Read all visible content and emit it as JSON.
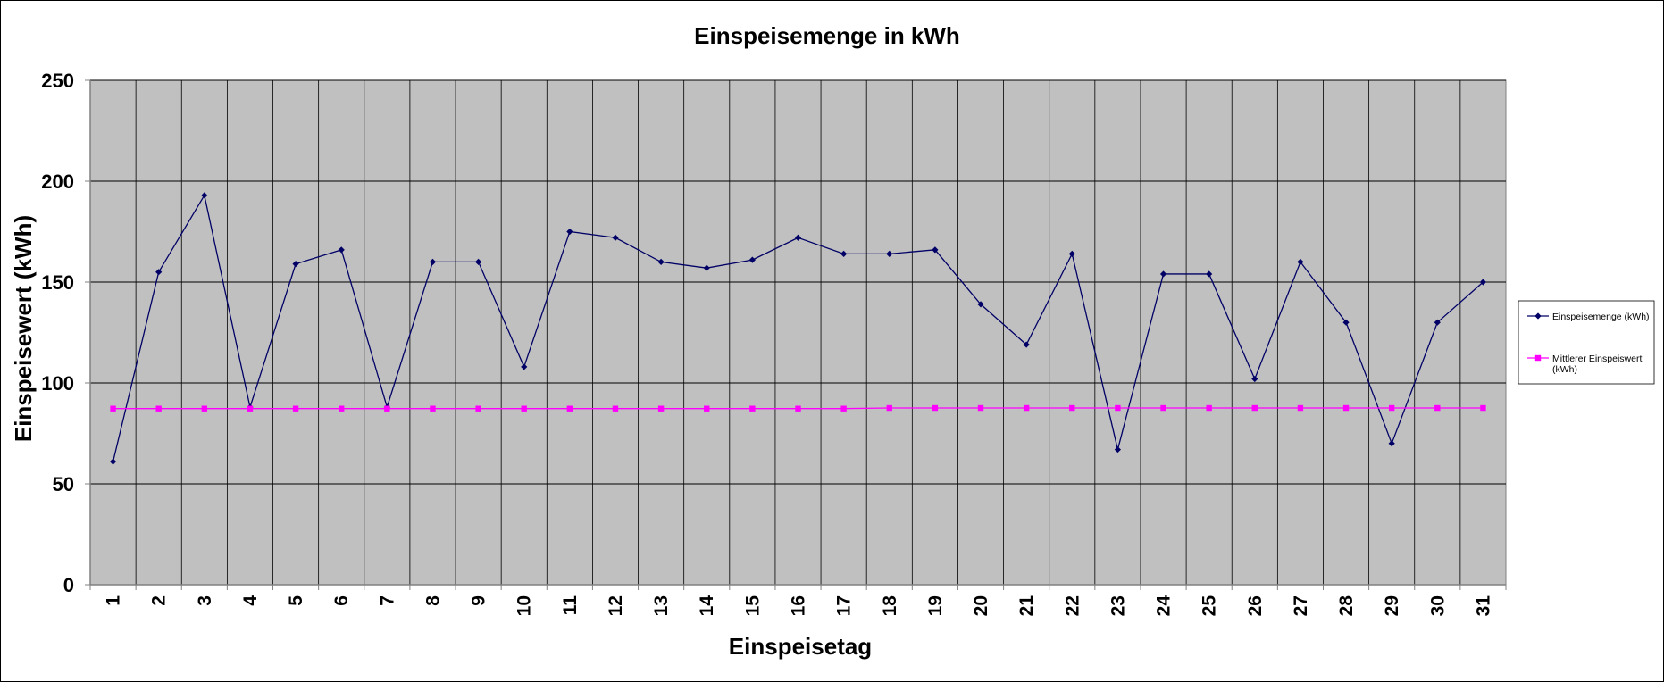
{
  "chart_data": {
    "type": "line",
    "title": "Einspeisemenge in kWh",
    "xlabel": "Einspeisetag",
    "ylabel": "Einspeisewert  (kWh)",
    "ylim": [
      0,
      250
    ],
    "yticks": [
      "0",
      "50",
      "100",
      "150",
      "200",
      "250"
    ],
    "grid": "on",
    "legend_position": "right",
    "categories": [
      "1",
      "2",
      "3",
      "4",
      "5",
      "6",
      "7",
      "8",
      "9",
      "10",
      "11",
      "12",
      "13",
      "14",
      "15",
      "16",
      "17",
      "18",
      "19",
      "20",
      "21",
      "22",
      "23",
      "24",
      "25",
      "26",
      "27",
      "28",
      "29",
      "30",
      "31"
    ],
    "series": [
      {
        "name": "Einspeisemenge (kWh)",
        "legend_lines": [
          "Einspeisemenge (kWh)"
        ],
        "color": "#000066",
        "marker": "diamond",
        "values": [
          61,
          155,
          193,
          88,
          159,
          166,
          88,
          160,
          160,
          108,
          175,
          172,
          160,
          157,
          161,
          172,
          164,
          164,
          166,
          139,
          119,
          164,
          67,
          154,
          154,
          102,
          160,
          130,
          70,
          130,
          150
        ]
      },
      {
        "name": "Mittlerer Einspeiswert (kWh)",
        "legend_lines": [
          "Mittlerer Einspeiswert",
          "(kWh)"
        ],
        "color": "#ff00ff",
        "marker": "square",
        "values": [
          87.3,
          87.3,
          87.3,
          87.3,
          87.3,
          87.3,
          87.3,
          87.3,
          87.3,
          87.3,
          87.3,
          87.3,
          87.3,
          87.3,
          87.3,
          87.3,
          87.3,
          87.6,
          87.6,
          87.6,
          87.6,
          87.6,
          87.6,
          87.6,
          87.6,
          87.6,
          87.6,
          87.6,
          87.6,
          87.6,
          87.6
        ]
      }
    ],
    "colors": {
      "plot_background": "#c0c0c0",
      "grid": "#000000"
    }
  }
}
